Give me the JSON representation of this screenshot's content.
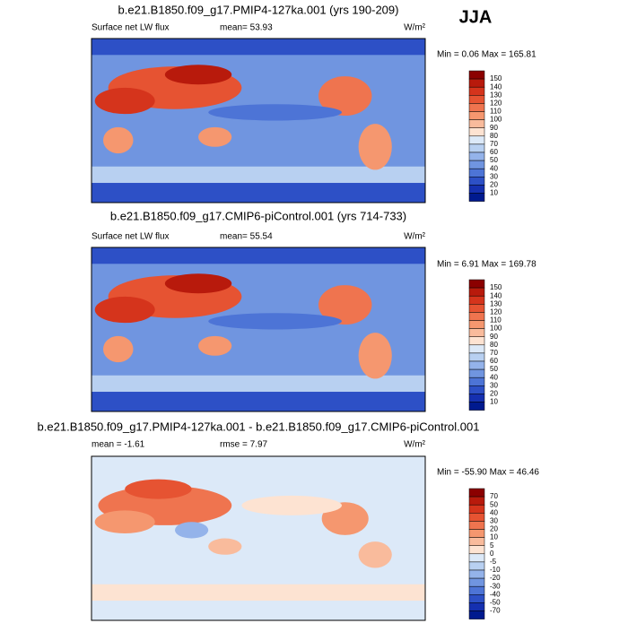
{
  "corner_label": "JJA",
  "panels": [
    {
      "title": "b.e21.B1850.f09_g17.PMIP4-127ka.001 (yrs 190-209)",
      "left": "Surface net LW flux",
      "center": "mean=  53.93",
      "units": "W/m²",
      "range": "Min =   0.06 Max = 165.81",
      "colorbar": {
        "levels": [
          150,
          140,
          130,
          120,
          110,
          100,
          90,
          80,
          70,
          60,
          50,
          40,
          30,
          20,
          10
        ],
        "colors": [
          "#8b0000",
          "#b81a0c",
          "#d5341c",
          "#e65332",
          "#ef744f",
          "#f5976f",
          "#f9bb9c",
          "#fde3d2",
          "#dce9f8",
          "#b8d0f1",
          "#94b3ea",
          "#7095e0",
          "#4d74d6",
          "#2d50c6",
          "#1530b0",
          "#001a8f"
        ]
      }
    },
    {
      "title": "b.e21.B1850.f09_g17.CMIP6-piControl.001 (yrs 714-733)",
      "left": "Surface net LW flux",
      "center": "mean=  55.54",
      "units": "W/m²",
      "range": "Min =   6.91 Max = 169.78",
      "colorbar": {
        "levels": [
          150,
          140,
          130,
          120,
          110,
          100,
          90,
          80,
          70,
          60,
          50,
          40,
          30,
          20,
          10
        ],
        "colors": [
          "#8b0000",
          "#b81a0c",
          "#d5341c",
          "#e65332",
          "#ef744f",
          "#f5976f",
          "#f9bb9c",
          "#fde3d2",
          "#dce9f8",
          "#b8d0f1",
          "#94b3ea",
          "#7095e0",
          "#4d74d6",
          "#2d50c6",
          "#1530b0",
          "#001a8f"
        ]
      }
    },
    {
      "title": "b.e21.B1850.f09_g17.PMIP4-127ka.001 - b.e21.B1850.f09_g17.CMIP6-piControl.001",
      "left": "mean =  -1.61",
      "center": "rmse =   7.97",
      "units": "W/m²",
      "range": "Min = -55.90 Max =  46.46",
      "colorbar": {
        "levels": [
          70,
          50,
          40,
          30,
          20,
          10,
          5,
          0,
          -5,
          -10,
          -20,
          -30,
          -40,
          -50,
          -70
        ],
        "colors": [
          "#8b0000",
          "#b81a0c",
          "#d5341c",
          "#e65332",
          "#ef744f",
          "#f5976f",
          "#f9bb9c",
          "#fde3d2",
          "#dce9f8",
          "#b8d0f1",
          "#94b3ea",
          "#7095e0",
          "#4d74d6",
          "#2d50c6",
          "#1530b0",
          "#001a8f"
        ]
      }
    }
  ]
}
